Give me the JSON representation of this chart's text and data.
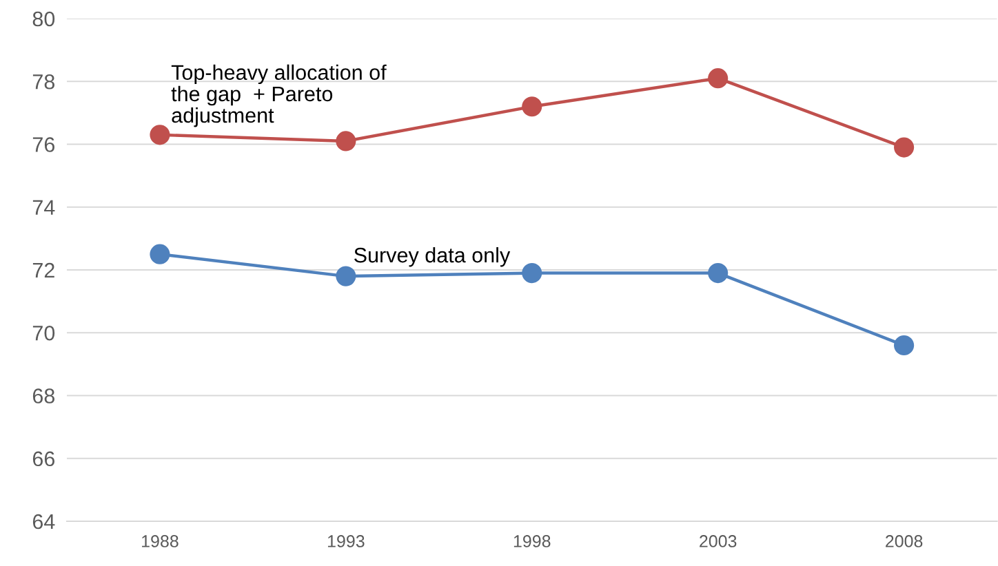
{
  "chart_data": {
    "type": "line",
    "categories": [
      "1988",
      "1993",
      "1998",
      "2003",
      "2008"
    ],
    "series": [
      {
        "name": "Top-heavy allocation of\nthe gap  + Pareto\nadjustment",
        "color": "#c0504d",
        "values": [
          76.3,
          76.1,
          77.2,
          78.1,
          75.9
        ]
      },
      {
        "name": "Survey data only",
        "color": "#4f81bd",
        "values": [
          72.5,
          71.8,
          71.9,
          71.9,
          69.6
        ]
      }
    ],
    "ylim": [
      64,
      80
    ],
    "yticks": [
      64,
      66,
      68,
      70,
      72,
      74,
      76,
      78,
      80
    ],
    "grid": "y",
    "marker": "circle",
    "line_style": "solid",
    "legend": false
  }
}
